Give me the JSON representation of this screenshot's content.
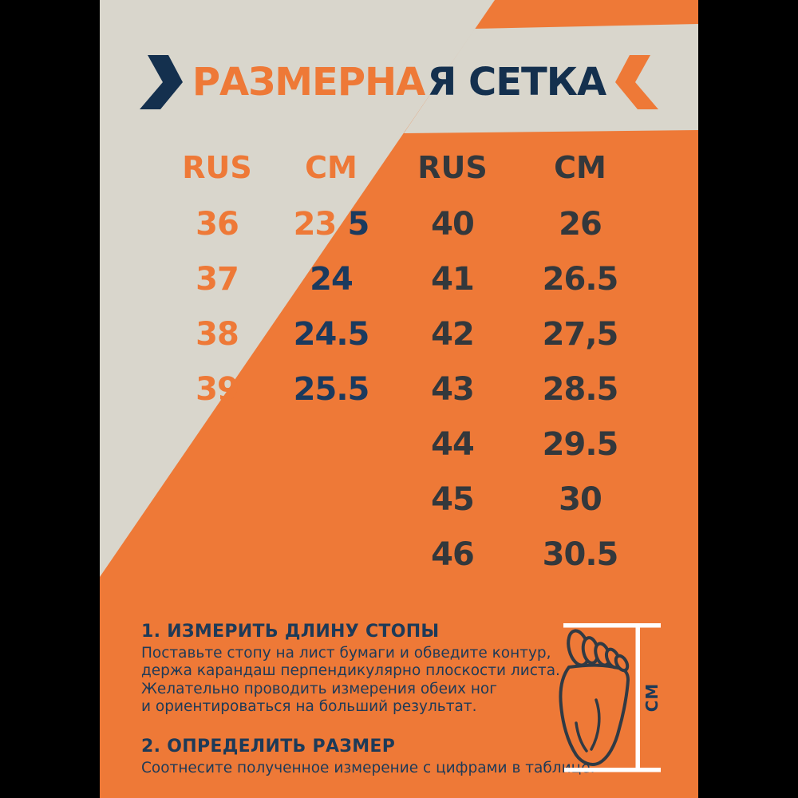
{
  "colors": {
    "black": "#000000",
    "beige": "#D9D6CC",
    "orange": "#EE7937",
    "navy_title": "#14304E",
    "navy_text": "#1D3A58",
    "charcoal": "#33383C",
    "white": "#FFFFFF"
  },
  "title": {
    "part_orange": "РАЗМЕРНА",
    "part_navy": "Я СЕТКА"
  },
  "size_table": {
    "left": {
      "headers": [
        "RUS",
        "СМ"
      ],
      "rows": [
        {
          "rus": "36",
          "cm": "23.5",
          "cm_split": [
            "23.",
            "5"
          ]
        },
        {
          "rus": "37",
          "cm": "24"
        },
        {
          "rus": "38",
          "cm": "24.5"
        },
        {
          "rus": "39",
          "cm": "25.5"
        }
      ]
    },
    "right": {
      "headers": [
        "RUS",
        "CM"
      ],
      "rows": [
        {
          "rus": "40",
          "cm": "26"
        },
        {
          "rus": "41",
          "cm": "26.5"
        },
        {
          "rus": "42",
          "cm": "27,5"
        },
        {
          "rus": "43",
          "cm": "28.5"
        },
        {
          "rus": "44",
          "cm": "29.5"
        },
        {
          "rus": "45",
          "cm": "30"
        },
        {
          "rus": "46",
          "cm": "30.5"
        }
      ]
    }
  },
  "instructions": {
    "step1": {
      "heading": "1. ИЗМЕРИТЬ ДЛИНУ СТОПЫ",
      "lines": [
        "Поставьте стопу на лист бумаги и обведите контур,",
        "держа карандаш перпендикулярно плоскости листа.",
        "Желательно проводить измерения обеих ног",
        "и ориентироваться на больший результат."
      ]
    },
    "step2": {
      "heading": "2. ОПРЕДЕЛИТЬ РАЗМЕР",
      "body": "Соотнесите полученное измерение с цифрами в таблице."
    }
  },
  "measure_diagram": {
    "unit_label": "СМ"
  }
}
